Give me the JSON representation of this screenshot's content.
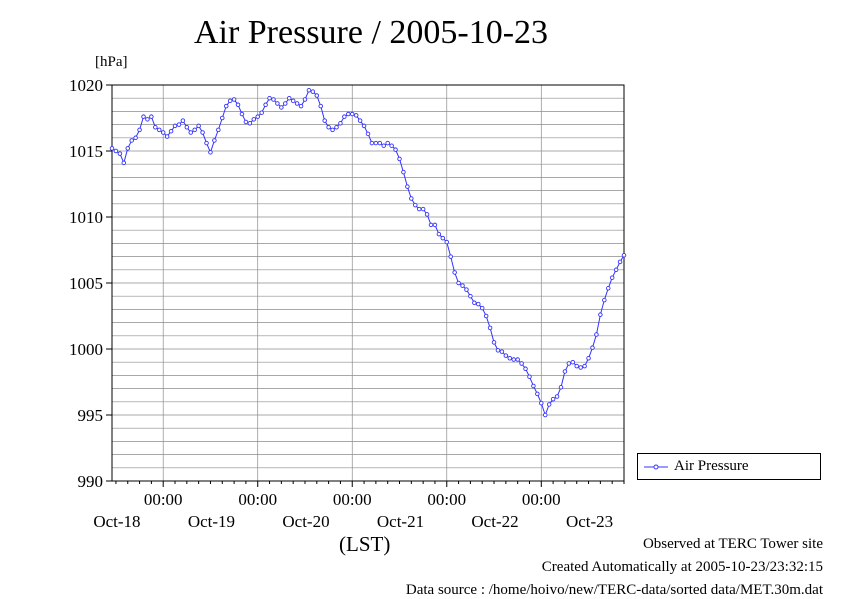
{
  "chart_data": {
    "type": "line",
    "title": "Air Pressure / 2005-10-23",
    "y_unit_label": "[hPa]",
    "x_axis_label": "(LST)",
    "ylim": [
      990,
      1020
    ],
    "y_ticks": [
      "990",
      "995",
      "1000",
      "1005",
      "1010",
      "1015",
      "1020"
    ],
    "x_tick_time_labels": [
      "00:00",
      "00:00",
      "00:00",
      "00:00",
      "00:00"
    ],
    "x_date_labels": [
      "Oct-18",
      "Oct-19",
      "Oct-20",
      "Oct-21",
      "Oct-22",
      "Oct-23"
    ],
    "x_range_hours": [
      -13.0,
      117.0
    ],
    "grid": true,
    "legend_position": "bottom-right",
    "series": [
      {
        "name": "Air Pressure",
        "color": "#3333ff",
        "points": [
          [
            -13.0,
            1015.2
          ],
          [
            -12.0,
            1015.0
          ],
          [
            -11.0,
            1014.8
          ],
          [
            -10.0,
            1014.1
          ],
          [
            -9.0,
            1015.2
          ],
          [
            -8.0,
            1015.8
          ],
          [
            -7.0,
            1016.0
          ],
          [
            -6.0,
            1016.6
          ],
          [
            -5.0,
            1017.6
          ],
          [
            -4.0,
            1017.4
          ],
          [
            -3.0,
            1017.6
          ],
          [
            -2.0,
            1016.8
          ],
          [
            -1.0,
            1016.6
          ],
          [
            0.0,
            1016.4
          ],
          [
            1.0,
            1016.1
          ],
          [
            2.0,
            1016.5
          ],
          [
            3.0,
            1016.9
          ],
          [
            4.0,
            1017.0
          ],
          [
            5.0,
            1017.3
          ],
          [
            6.0,
            1016.8
          ],
          [
            7.0,
            1016.4
          ],
          [
            8.0,
            1016.6
          ],
          [
            9.0,
            1016.9
          ],
          [
            10.0,
            1016.4
          ],
          [
            11.0,
            1015.6
          ],
          [
            12.0,
            1014.9
          ],
          [
            13.0,
            1015.8
          ],
          [
            14.0,
            1016.6
          ],
          [
            15.0,
            1017.5
          ],
          [
            16.0,
            1018.4
          ],
          [
            17.0,
            1018.8
          ],
          [
            18.0,
            1018.9
          ],
          [
            19.0,
            1018.5
          ],
          [
            20.0,
            1017.8
          ],
          [
            21.0,
            1017.2
          ],
          [
            22.0,
            1017.1
          ],
          [
            23.0,
            1017.4
          ],
          [
            24.0,
            1017.6
          ],
          [
            25.0,
            1017.9
          ],
          [
            26.0,
            1018.5
          ],
          [
            27.0,
            1019.0
          ],
          [
            28.0,
            1018.9
          ],
          [
            29.0,
            1018.6
          ],
          [
            30.0,
            1018.3
          ],
          [
            31.0,
            1018.6
          ],
          [
            32.0,
            1019.0
          ],
          [
            33.0,
            1018.8
          ],
          [
            34.0,
            1018.6
          ],
          [
            35.0,
            1018.4
          ],
          [
            36.0,
            1018.9
          ],
          [
            37.0,
            1019.6
          ],
          [
            38.0,
            1019.5
          ],
          [
            39.0,
            1019.2
          ],
          [
            40.0,
            1018.4
          ],
          [
            41.0,
            1017.3
          ],
          [
            42.0,
            1016.8
          ],
          [
            43.0,
            1016.6
          ],
          [
            44.0,
            1016.8
          ],
          [
            45.0,
            1017.1
          ],
          [
            46.0,
            1017.6
          ],
          [
            47.0,
            1017.8
          ],
          [
            48.0,
            1017.8
          ],
          [
            49.0,
            1017.7
          ],
          [
            50.0,
            1017.3
          ],
          [
            51.0,
            1016.9
          ],
          [
            52.0,
            1016.3
          ],
          [
            53.0,
            1015.6
          ],
          [
            54.0,
            1015.6
          ],
          [
            55.0,
            1015.6
          ],
          [
            56.0,
            1015.4
          ],
          [
            57.0,
            1015.6
          ],
          [
            58.0,
            1015.4
          ],
          [
            59.0,
            1015.1
          ],
          [
            60.0,
            1014.4
          ],
          [
            61.0,
            1013.4
          ],
          [
            62.0,
            1012.3
          ],
          [
            63.0,
            1011.4
          ],
          [
            64.0,
            1010.9
          ],
          [
            65.0,
            1010.6
          ],
          [
            66.0,
            1010.6
          ],
          [
            67.0,
            1010.2
          ],
          [
            68.0,
            1009.4
          ],
          [
            69.0,
            1009.4
          ],
          [
            70.0,
            1008.7
          ],
          [
            71.0,
            1008.4
          ],
          [
            72.0,
            1008.1
          ],
          [
            73.0,
            1007.0
          ],
          [
            74.0,
            1005.8
          ],
          [
            75.0,
            1005.0
          ],
          [
            76.0,
            1004.8
          ],
          [
            77.0,
            1004.5
          ],
          [
            78.0,
            1004.0
          ],
          [
            79.0,
            1003.5
          ],
          [
            80.0,
            1003.4
          ],
          [
            81.0,
            1003.1
          ],
          [
            82.0,
            1002.5
          ],
          [
            83.0,
            1001.6
          ],
          [
            84.0,
            1000.5
          ],
          [
            85.0,
            999.9
          ],
          [
            86.0,
            999.8
          ],
          [
            87.0,
            999.5
          ],
          [
            88.0,
            999.3
          ],
          [
            89.0,
            999.2
          ],
          [
            90.0,
            999.2
          ],
          [
            91.0,
            998.9
          ],
          [
            92.0,
            998.5
          ],
          [
            93.0,
            997.9
          ],
          [
            94.0,
            997.2
          ],
          [
            95.0,
            996.6
          ],
          [
            96.0,
            995.9
          ],
          [
            97.0,
            995.0
          ],
          [
            98.0,
            995.8
          ],
          [
            99.0,
            996.2
          ],
          [
            100.0,
            996.4
          ],
          [
            101.0,
            997.1
          ],
          [
            102.0,
            998.3
          ],
          [
            103.0,
            998.9
          ],
          [
            104.0,
            999.0
          ],
          [
            105.0,
            998.7
          ],
          [
            106.0,
            998.6
          ],
          [
            107.0,
            998.7
          ],
          [
            108.0,
            999.3
          ],
          [
            109.0,
            1000.1
          ],
          [
            110.0,
            1001.1
          ],
          [
            111.0,
            1002.6
          ],
          [
            112.0,
            1003.7
          ],
          [
            113.0,
            1004.6
          ],
          [
            114.0,
            1005.4
          ],
          [
            115.0,
            1006.0
          ],
          [
            116.0,
            1006.6
          ],
          [
            117.0,
            1007.1
          ]
        ]
      }
    ]
  },
  "footer": {
    "observed": "Observed at TERC Tower site",
    "created": "Created Automatically at 2005-10-23/23:32:15",
    "source": "Data source : /home/hoivo/new/TERC-data/sorted  data/MET.30m.dat"
  }
}
